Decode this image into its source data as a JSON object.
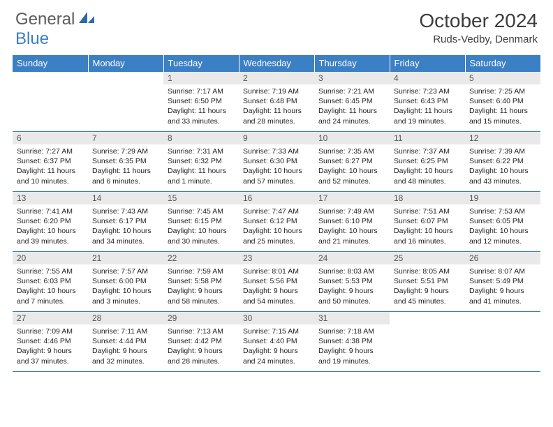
{
  "logo": {
    "general": "General",
    "blue": "Blue"
  },
  "title": "October 2024",
  "location": "Ruds-Vedby, Denmark",
  "colors": {
    "header_bg": "#3b7fc4",
    "header_fg": "#ffffff",
    "daynum_bg": "#e9e9e9",
    "border": "#3b7fc4",
    "text": "#222222"
  },
  "weekdays": [
    "Sunday",
    "Monday",
    "Tuesday",
    "Wednesday",
    "Thursday",
    "Friday",
    "Saturday"
  ],
  "weeks": [
    [
      null,
      null,
      {
        "n": "1",
        "sr": "Sunrise: 7:17 AM",
        "ss": "Sunset: 6:50 PM",
        "dl": "Daylight: 11 hours and 33 minutes."
      },
      {
        "n": "2",
        "sr": "Sunrise: 7:19 AM",
        "ss": "Sunset: 6:48 PM",
        "dl": "Daylight: 11 hours and 28 minutes."
      },
      {
        "n": "3",
        "sr": "Sunrise: 7:21 AM",
        "ss": "Sunset: 6:45 PM",
        "dl": "Daylight: 11 hours and 24 minutes."
      },
      {
        "n": "4",
        "sr": "Sunrise: 7:23 AM",
        "ss": "Sunset: 6:43 PM",
        "dl": "Daylight: 11 hours and 19 minutes."
      },
      {
        "n": "5",
        "sr": "Sunrise: 7:25 AM",
        "ss": "Sunset: 6:40 PM",
        "dl": "Daylight: 11 hours and 15 minutes."
      }
    ],
    [
      {
        "n": "6",
        "sr": "Sunrise: 7:27 AM",
        "ss": "Sunset: 6:37 PM",
        "dl": "Daylight: 11 hours and 10 minutes."
      },
      {
        "n": "7",
        "sr": "Sunrise: 7:29 AM",
        "ss": "Sunset: 6:35 PM",
        "dl": "Daylight: 11 hours and 6 minutes."
      },
      {
        "n": "8",
        "sr": "Sunrise: 7:31 AM",
        "ss": "Sunset: 6:32 PM",
        "dl": "Daylight: 11 hours and 1 minute."
      },
      {
        "n": "9",
        "sr": "Sunrise: 7:33 AM",
        "ss": "Sunset: 6:30 PM",
        "dl": "Daylight: 10 hours and 57 minutes."
      },
      {
        "n": "10",
        "sr": "Sunrise: 7:35 AM",
        "ss": "Sunset: 6:27 PM",
        "dl": "Daylight: 10 hours and 52 minutes."
      },
      {
        "n": "11",
        "sr": "Sunrise: 7:37 AM",
        "ss": "Sunset: 6:25 PM",
        "dl": "Daylight: 10 hours and 48 minutes."
      },
      {
        "n": "12",
        "sr": "Sunrise: 7:39 AM",
        "ss": "Sunset: 6:22 PM",
        "dl": "Daylight: 10 hours and 43 minutes."
      }
    ],
    [
      {
        "n": "13",
        "sr": "Sunrise: 7:41 AM",
        "ss": "Sunset: 6:20 PM",
        "dl": "Daylight: 10 hours and 39 minutes."
      },
      {
        "n": "14",
        "sr": "Sunrise: 7:43 AM",
        "ss": "Sunset: 6:17 PM",
        "dl": "Daylight: 10 hours and 34 minutes."
      },
      {
        "n": "15",
        "sr": "Sunrise: 7:45 AM",
        "ss": "Sunset: 6:15 PM",
        "dl": "Daylight: 10 hours and 30 minutes."
      },
      {
        "n": "16",
        "sr": "Sunrise: 7:47 AM",
        "ss": "Sunset: 6:12 PM",
        "dl": "Daylight: 10 hours and 25 minutes."
      },
      {
        "n": "17",
        "sr": "Sunrise: 7:49 AM",
        "ss": "Sunset: 6:10 PM",
        "dl": "Daylight: 10 hours and 21 minutes."
      },
      {
        "n": "18",
        "sr": "Sunrise: 7:51 AM",
        "ss": "Sunset: 6:07 PM",
        "dl": "Daylight: 10 hours and 16 minutes."
      },
      {
        "n": "19",
        "sr": "Sunrise: 7:53 AM",
        "ss": "Sunset: 6:05 PM",
        "dl": "Daylight: 10 hours and 12 minutes."
      }
    ],
    [
      {
        "n": "20",
        "sr": "Sunrise: 7:55 AM",
        "ss": "Sunset: 6:03 PM",
        "dl": "Daylight: 10 hours and 7 minutes."
      },
      {
        "n": "21",
        "sr": "Sunrise: 7:57 AM",
        "ss": "Sunset: 6:00 PM",
        "dl": "Daylight: 10 hours and 3 minutes."
      },
      {
        "n": "22",
        "sr": "Sunrise: 7:59 AM",
        "ss": "Sunset: 5:58 PM",
        "dl": "Daylight: 9 hours and 58 minutes."
      },
      {
        "n": "23",
        "sr": "Sunrise: 8:01 AM",
        "ss": "Sunset: 5:56 PM",
        "dl": "Daylight: 9 hours and 54 minutes."
      },
      {
        "n": "24",
        "sr": "Sunrise: 8:03 AM",
        "ss": "Sunset: 5:53 PM",
        "dl": "Daylight: 9 hours and 50 minutes."
      },
      {
        "n": "25",
        "sr": "Sunrise: 8:05 AM",
        "ss": "Sunset: 5:51 PM",
        "dl": "Daylight: 9 hours and 45 minutes."
      },
      {
        "n": "26",
        "sr": "Sunrise: 8:07 AM",
        "ss": "Sunset: 5:49 PM",
        "dl": "Daylight: 9 hours and 41 minutes."
      }
    ],
    [
      {
        "n": "27",
        "sr": "Sunrise: 7:09 AM",
        "ss": "Sunset: 4:46 PM",
        "dl": "Daylight: 9 hours and 37 minutes."
      },
      {
        "n": "28",
        "sr": "Sunrise: 7:11 AM",
        "ss": "Sunset: 4:44 PM",
        "dl": "Daylight: 9 hours and 32 minutes."
      },
      {
        "n": "29",
        "sr": "Sunrise: 7:13 AM",
        "ss": "Sunset: 4:42 PM",
        "dl": "Daylight: 9 hours and 28 minutes."
      },
      {
        "n": "30",
        "sr": "Sunrise: 7:15 AM",
        "ss": "Sunset: 4:40 PM",
        "dl": "Daylight: 9 hours and 24 minutes."
      },
      {
        "n": "31",
        "sr": "Sunrise: 7:18 AM",
        "ss": "Sunset: 4:38 PM",
        "dl": "Daylight: 9 hours and 19 minutes."
      },
      null,
      null
    ]
  ]
}
